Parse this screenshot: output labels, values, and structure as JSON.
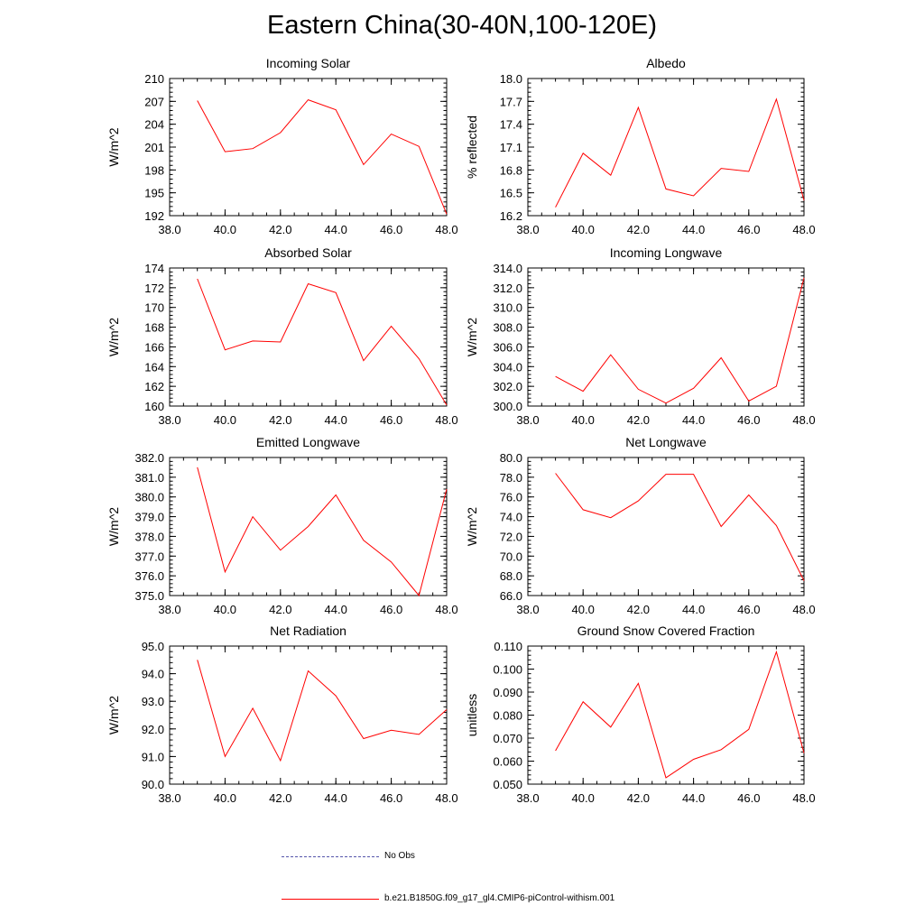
{
  "title": "Eastern China(30-40N,100-120E)",
  "colors": {
    "model": "#ff0000",
    "obs": "#0000ff",
    "axis": "#000000"
  },
  "legend": {
    "obs_label": "No Obs",
    "model_label": "b.e21.B1850G.f09_g17_gl4.CMIP6-piControl-withism.001"
  },
  "chart_data": [
    {
      "type": "line",
      "title": "Incoming Solar",
      "ylabel": "W/m^2",
      "xlim": [
        38.0,
        48.0
      ],
      "ylim": [
        192,
        210
      ],
      "xticks": [
        "38.0",
        "40.0",
        "42.0",
        "44.0",
        "46.0",
        "48.0"
      ],
      "yticks": [
        "192",
        "195",
        "198",
        "201",
        "204",
        "207",
        "210"
      ],
      "x": [
        39,
        40,
        41,
        42,
        43,
        44,
        45,
        46,
        47,
        48
      ],
      "series": [
        {
          "values": [
            207.1,
            200.4,
            200.8,
            202.9,
            207.2,
            205.9,
            198.7,
            202.7,
            201.1,
            192.2
          ]
        }
      ]
    },
    {
      "type": "line",
      "title": "Albedo",
      "ylabel": "% reflected",
      "xlim": [
        38.0,
        48.0
      ],
      "ylim": [
        16.2,
        18.0
      ],
      "xticks": [
        "38.0",
        "40.0",
        "42.0",
        "44.0",
        "46.0",
        "48.0"
      ],
      "yticks": [
        "16.2",
        "16.5",
        "16.8",
        "17.1",
        "17.4",
        "17.7",
        "18.0"
      ],
      "x": [
        39,
        40,
        41,
        42,
        43,
        44,
        45,
        46,
        47,
        48
      ],
      "series": [
        {
          "values": [
            16.31,
            17.02,
            16.73,
            17.62,
            16.55,
            16.46,
            16.82,
            16.78,
            17.73,
            16.4
          ]
        }
      ]
    },
    {
      "type": "line",
      "title": "Absorbed Solar",
      "ylabel": "W/m^2",
      "xlim": [
        38.0,
        48.0
      ],
      "ylim": [
        160,
        174
      ],
      "xticks": [
        "38.0",
        "40.0",
        "42.0",
        "44.0",
        "46.0",
        "48.0"
      ],
      "yticks": [
        "160",
        "162",
        "164",
        "166",
        "168",
        "170",
        "172",
        "174"
      ],
      "x": [
        39,
        40,
        41,
        42,
        43,
        44,
        45,
        46,
        47,
        48
      ],
      "series": [
        {
          "values": [
            172.9,
            165.7,
            166.6,
            166.5,
            172.4,
            171.5,
            164.6,
            168.1,
            164.8,
            160.1
          ]
        }
      ]
    },
    {
      "type": "line",
      "title": "Incoming Longwave",
      "ylabel": "W/m^2",
      "xlim": [
        38.0,
        48.0
      ],
      "ylim": [
        300.0,
        314.0
      ],
      "xticks": [
        "38.0",
        "40.0",
        "42.0",
        "44.0",
        "46.0",
        "48.0"
      ],
      "yticks": [
        "300.0",
        "302.0",
        "304.0",
        "306.0",
        "308.0",
        "310.0",
        "312.0",
        "314.0"
      ],
      "x": [
        39,
        40,
        41,
        42,
        43,
        44,
        45,
        46,
        47,
        48
      ],
      "series": [
        {
          "values": [
            303.0,
            301.5,
            305.2,
            301.7,
            300.3,
            301.8,
            304.9,
            300.5,
            302.0,
            313.0
          ]
        }
      ]
    },
    {
      "type": "line",
      "title": "Emitted Longwave",
      "ylabel": "W/m^2",
      "xlim": [
        38.0,
        48.0
      ],
      "ylim": [
        375.0,
        382.0
      ],
      "xticks": [
        "38.0",
        "40.0",
        "42.0",
        "44.0",
        "46.0",
        "48.0"
      ],
      "yticks": [
        "375.0",
        "376.0",
        "377.0",
        "378.0",
        "379.0",
        "380.0",
        "381.0",
        "382.0"
      ],
      "x": [
        39,
        40,
        41,
        42,
        43,
        44,
        45,
        46,
        47,
        48
      ],
      "series": [
        {
          "values": [
            381.5,
            376.2,
            379.0,
            377.3,
            378.5,
            380.1,
            377.8,
            376.7,
            375.0,
            380.4
          ]
        }
      ]
    },
    {
      "type": "line",
      "title": "Net Longwave",
      "ylabel": "W/m^2",
      "xlim": [
        38.0,
        48.0
      ],
      "ylim": [
        66.0,
        80.0
      ],
      "xticks": [
        "38.0",
        "40.0",
        "42.0",
        "44.0",
        "46.0",
        "48.0"
      ],
      "yticks": [
        "66.0",
        "68.0",
        "70.0",
        "72.0",
        "74.0",
        "76.0",
        "78.0",
        "80.0"
      ],
      "x": [
        39,
        40,
        41,
        42,
        43,
        44,
        45,
        46,
        47,
        48
      ],
      "series": [
        {
          "values": [
            78.4,
            74.7,
            73.9,
            75.6,
            78.3,
            78.3,
            73.0,
            76.2,
            73.1,
            67.5
          ]
        }
      ]
    },
    {
      "type": "line",
      "title": "Net Radiation",
      "ylabel": "W/m^2",
      "xlim": [
        38.0,
        48.0
      ],
      "ylim": [
        90.0,
        95.0
      ],
      "xticks": [
        "38.0",
        "40.0",
        "42.0",
        "44.0",
        "46.0",
        "48.0"
      ],
      "yticks": [
        "90.0",
        "91.0",
        "92.0",
        "93.0",
        "94.0",
        "95.0"
      ],
      "x": [
        39,
        40,
        41,
        42,
        43,
        44,
        45,
        46,
        47,
        48
      ],
      "series": [
        {
          "values": [
            94.5,
            91.0,
            92.75,
            90.85,
            94.1,
            93.2,
            91.65,
            91.95,
            91.8,
            92.7
          ]
        }
      ]
    },
    {
      "type": "line",
      "title": "Ground Snow Covered Fraction",
      "ylabel": "unitless",
      "xlim": [
        38.0,
        48.0
      ],
      "ylim": [
        0.05,
        0.11
      ],
      "xticks": [
        "38.0",
        "40.0",
        "42.0",
        "44.0",
        "46.0",
        "48.0"
      ],
      "yticks": [
        "0.050",
        "0.060",
        "0.070",
        "0.080",
        "0.090",
        "0.100",
        "0.110"
      ],
      "x": [
        39,
        40,
        41,
        42,
        43,
        44,
        45,
        46,
        47,
        48
      ],
      "series": [
        {
          "values": [
            0.0645,
            0.0858,
            0.0748,
            0.0938,
            0.0528,
            0.0608,
            0.065,
            0.0738,
            0.1075,
            0.0635
          ]
        }
      ]
    }
  ]
}
